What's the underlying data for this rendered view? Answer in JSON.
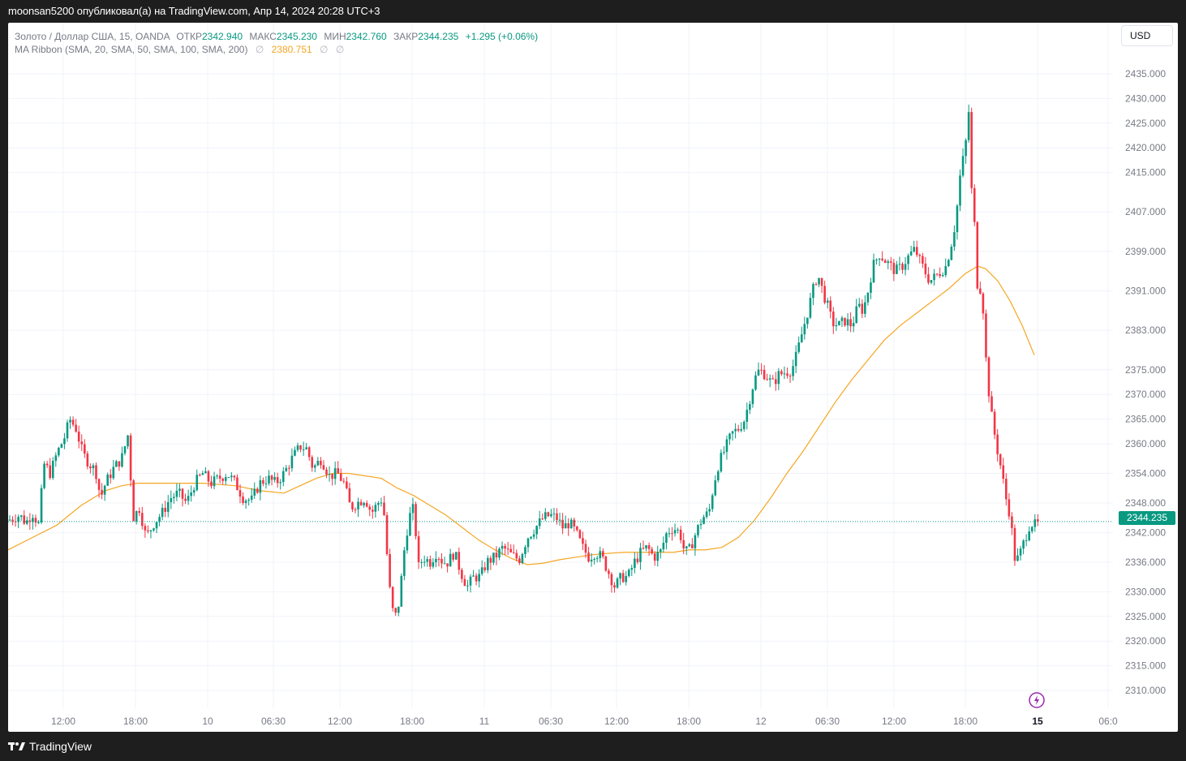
{
  "header": {
    "publish_text": "moonsan5200 опубликовал(а) на TradingView.com, Апр 14, 2024 20:28 UTC+3"
  },
  "legend": {
    "symbol": "Золото / Доллар США, 15, OANDA",
    "open_label": "ОТКР",
    "open_value": "2342.940",
    "high_label": "МАКС",
    "high_value": "2345.230",
    "low_label": "МИН",
    "low_value": "2342.760",
    "close_label": "ЗАКР",
    "close_value": "2344.235",
    "change": "+1.295 (+0.06%)",
    "ma_name": "MA Ribbon (SMA, 20, SMA, 50, SMA, 100, SMA, 200)",
    "ma_value": "2380.751",
    "na_symbol": "∅"
  },
  "currency_button": "USD",
  "last_price_tag": "2344.235",
  "footer": {
    "brand": "TradingView"
  },
  "colors": {
    "up": "#089981",
    "down": "#f23645",
    "ma": "#f5a623",
    "grid": "#f0f3fa"
  },
  "chart_data": {
    "type": "candlestick",
    "symbol": "XAUUSD",
    "interval": "15",
    "y_ticks": [
      2435.0,
      2430.0,
      2425.0,
      2420.0,
      2415.0,
      2407.0,
      2399.0,
      2391.0,
      2383.0,
      2375.0,
      2370.0,
      2365.0,
      2360.0,
      2354.0,
      2348.0,
      2342.0,
      2336.0,
      2330.0,
      2325.0,
      2320.0,
      2315.0,
      2310.0
    ],
    "x_ticks": [
      "12:00",
      "18:00",
      "10",
      "06:30",
      "12:00",
      "18:00",
      "11",
      "06:30",
      "12:00",
      "18:00",
      "12",
      "06:30",
      "12:00",
      "18:00",
      "15",
      "06:0"
    ],
    "x_tick_bold": [
      false,
      false,
      false,
      false,
      false,
      false,
      false,
      false,
      false,
      false,
      false,
      false,
      false,
      false,
      true,
      false
    ],
    "ylim": [
      2306,
      2439
    ],
    "last_price": 2344.235,
    "ma_series_name": "SMA 200",
    "price_path": [
      [
        0,
        2344.5
      ],
      [
        14,
        2345.5
      ],
      [
        22,
        2344.0
      ],
      [
        30,
        2346.0
      ],
      [
        38,
        2343.5
      ],
      [
        44,
        2356.0
      ],
      [
        52,
        2354.0
      ],
      [
        60,
        2358.0
      ],
      [
        70,
        2361.5
      ],
      [
        76,
        2365.0
      ],
      [
        84,
        2363.0
      ],
      [
        92,
        2358.0
      ],
      [
        100,
        2356.0
      ],
      [
        108,
        2354.5
      ],
      [
        114,
        2349.0
      ],
      [
        120,
        2352.0
      ],
      [
        130,
        2355.0
      ],
      [
        140,
        2357.0
      ],
      [
        148,
        2362.0
      ],
      [
        154,
        2345.0
      ],
      [
        162,
        2347.0
      ],
      [
        170,
        2341.0
      ],
      [
        180,
        2344.0
      ],
      [
        190,
        2346.0
      ],
      [
        200,
        2349.0
      ],
      [
        210,
        2350.0
      ],
      [
        220,
        2348.0
      ],
      [
        230,
        2352.0
      ],
      [
        240,
        2354.0
      ],
      [
        250,
        2352.0
      ],
      [
        260,
        2353.0
      ],
      [
        270,
        2354.0
      ],
      [
        280,
        2352.0
      ],
      [
        290,
        2349.0
      ],
      [
        300,
        2348.5
      ],
      [
        310,
        2352.0
      ],
      [
        320,
        2353.0
      ],
      [
        330,
        2352.0
      ],
      [
        340,
        2354.0
      ],
      [
        350,
        2357.0
      ],
      [
        360,
        2359.5
      ],
      [
        368,
        2359.0
      ],
      [
        376,
        2355.0
      ],
      [
        386,
        2357.0
      ],
      [
        396,
        2353.5
      ],
      [
        406,
        2354.0
      ],
      [
        414,
        2352.0
      ],
      [
        422,
        2347.0
      ],
      [
        430,
        2348.0
      ],
      [
        440,
        2349.0
      ],
      [
        448,
        2346.0
      ],
      [
        456,
        2348.0
      ],
      [
        462,
        2349.0
      ],
      [
        470,
        2331.0
      ],
      [
        476,
        2324.0
      ],
      [
        482,
        2328.0
      ],
      [
        488,
        2338.0
      ],
      [
        494,
        2345.0
      ],
      [
        500,
        2347.0
      ],
      [
        506,
        2335.0
      ],
      [
        512,
        2337.0
      ],
      [
        520,
        2336.0
      ],
      [
        528,
        2338.0
      ],
      [
        536,
        2336.0
      ],
      [
        542,
        2336.0
      ],
      [
        550,
        2338.0
      ],
      [
        558,
        2334.0
      ],
      [
        566,
        2331.0
      ],
      [
        574,
        2333.0
      ],
      [
        582,
        2333.0
      ],
      [
        590,
        2336.0
      ],
      [
        600,
        2337.0
      ],
      [
        610,
        2339.0
      ],
      [
        620,
        2337.5
      ],
      [
        630,
        2336.5
      ],
      [
        640,
        2341.0
      ],
      [
        650,
        2343.0
      ],
      [
        660,
        2345.0
      ],
      [
        668,
        2345.5
      ],
      [
        676,
        2345.0
      ],
      [
        684,
        2343.0
      ],
      [
        692,
        2344.0
      ],
      [
        700,
        2342.0
      ],
      [
        708,
        2339.0
      ],
      [
        716,
        2337.0
      ],
      [
        724,
        2338.0
      ],
      [
        732,
        2337.0
      ],
      [
        740,
        2334.0
      ],
      [
        748,
        2331.0
      ],
      [
        756,
        2333.0
      ],
      [
        764,
        2333.0
      ],
      [
        772,
        2336.0
      ],
      [
        780,
        2338.0
      ],
      [
        788,
        2339.0
      ],
      [
        796,
        2337.0
      ],
      [
        804,
        2338.0
      ],
      [
        812,
        2342.0
      ],
      [
        820,
        2343.0
      ],
      [
        828,
        2342.0
      ],
      [
        834,
        2338.0
      ],
      [
        840,
        2338.5
      ],
      [
        848,
        2342.0
      ],
      [
        856,
        2345.0
      ],
      [
        864,
        2346.0
      ],
      [
        870,
        2352.0
      ],
      [
        876,
        2356.0
      ],
      [
        884,
        2359.0
      ],
      [
        892,
        2362.0
      ],
      [
        900,
        2363.0
      ],
      [
        908,
        2365.0
      ],
      [
        914,
        2369.0
      ],
      [
        920,
        2373.0
      ],
      [
        926,
        2375.0
      ],
      [
        934,
        2374.0
      ],
      [
        942,
        2372.0
      ],
      [
        950,
        2374.0
      ],
      [
        958,
        2374.5
      ],
      [
        966,
        2375.0
      ],
      [
        972,
        2378.0
      ],
      [
        978,
        2382.0
      ],
      [
        986,
        2387.0
      ],
      [
        992,
        2391.0
      ],
      [
        998,
        2394.5
      ],
      [
        1004,
        2391.0
      ],
      [
        1010,
        2388.0
      ],
      [
        1016,
        2384.5
      ],
      [
        1024,
        2384.0
      ],
      [
        1032,
        2385.0
      ],
      [
        1040,
        2384.0
      ],
      [
        1048,
        2388.0
      ],
      [
        1054,
        2387.0
      ],
      [
        1060,
        2391.0
      ],
      [
        1066,
        2396.0
      ],
      [
        1074,
        2398.5
      ],
      [
        1082,
        2397.0
      ],
      [
        1088,
        2396.0
      ],
      [
        1094,
        2395.0
      ],
      [
        1102,
        2396.0
      ],
      [
        1110,
        2398.0
      ],
      [
        1118,
        2399.5
      ],
      [
        1124,
        2397.0
      ],
      [
        1130,
        2395.0
      ],
      [
        1136,
        2393.0
      ],
      [
        1144,
        2394.0
      ],
      [
        1150,
        2395.0
      ],
      [
        1156,
        2396.0
      ],
      [
        1162,
        2400.0
      ],
      [
        1168,
        2405.0
      ],
      [
        1174,
        2415.0
      ],
      [
        1180,
        2420.0
      ],
      [
        1184,
        2428.0
      ],
      [
        1188,
        2410.0
      ],
      [
        1192,
        2403.0
      ],
      [
        1196,
        2388.0
      ],
      [
        1200,
        2394.0
      ],
      [
        1204,
        2380.0
      ],
      [
        1208,
        2372.0
      ],
      [
        1212,
        2366.0
      ],
      [
        1218,
        2360.0
      ],
      [
        1224,
        2355.0
      ],
      [
        1230,
        2349.0
      ],
      [
        1236,
        2345.0
      ],
      [
        1240,
        2337.0
      ],
      [
        1244,
        2336.5
      ],
      [
        1248,
        2338.0
      ],
      [
        1254,
        2341.0
      ],
      [
        1260,
        2344.0
      ],
      [
        1266,
        2343.5
      ],
      [
        1270,
        2344.235
      ]
    ],
    "ma_path": [
      [
        0,
        2338.5
      ],
      [
        30,
        2341.0
      ],
      [
        60,
        2343.5
      ],
      [
        90,
        2347.5
      ],
      [
        120,
        2350.5
      ],
      [
        140,
        2351.5
      ],
      [
        160,
        2352.0
      ],
      [
        200,
        2352.0
      ],
      [
        240,
        2352.0
      ],
      [
        280,
        2351.5
      ],
      [
        310,
        2350.5
      ],
      [
        340,
        2350.0
      ],
      [
        360,
        2351.5
      ],
      [
        380,
        2353.0
      ],
      [
        400,
        2354.0
      ],
      [
        420,
        2354.0
      ],
      [
        440,
        2353.5
      ],
      [
        460,
        2353.0
      ],
      [
        480,
        2351.0
      ],
      [
        500,
        2349.5
      ],
      [
        520,
        2347.5
      ],
      [
        540,
        2345.5
      ],
      [
        560,
        2343.0
      ],
      [
        580,
        2340.5
      ],
      [
        600,
        2338.5
      ],
      [
        620,
        2336.8
      ],
      [
        640,
        2335.5
      ],
      [
        660,
        2335.8
      ],
      [
        680,
        2336.5
      ],
      [
        700,
        2337.0
      ],
      [
        720,
        2337.5
      ],
      [
        740,
        2337.8
      ],
      [
        760,
        2338.0
      ],
      [
        780,
        2338.0
      ],
      [
        800,
        2338.0
      ],
      [
        820,
        2338.0
      ],
      [
        840,
        2338.5
      ],
      [
        860,
        2338.5
      ],
      [
        880,
        2339.0
      ],
      [
        900,
        2341.0
      ],
      [
        920,
        2344.5
      ],
      [
        940,
        2349.0
      ],
      [
        960,
        2354.0
      ],
      [
        980,
        2358.5
      ],
      [
        1000,
        2363.5
      ],
      [
        1020,
        2368.5
      ],
      [
        1040,
        2373.0
      ],
      [
        1060,
        2377.0
      ],
      [
        1080,
        2381.0
      ],
      [
        1100,
        2384.0
      ],
      [
        1120,
        2386.5
      ],
      [
        1140,
        2389.0
      ],
      [
        1160,
        2391.5
      ],
      [
        1180,
        2394.5
      ],
      [
        1195,
        2396.0
      ],
      [
        1205,
        2395.5
      ],
      [
        1220,
        2393.0
      ],
      [
        1235,
        2389.0
      ],
      [
        1250,
        2384.0
      ],
      [
        1265,
        2378.0
      ]
    ]
  }
}
